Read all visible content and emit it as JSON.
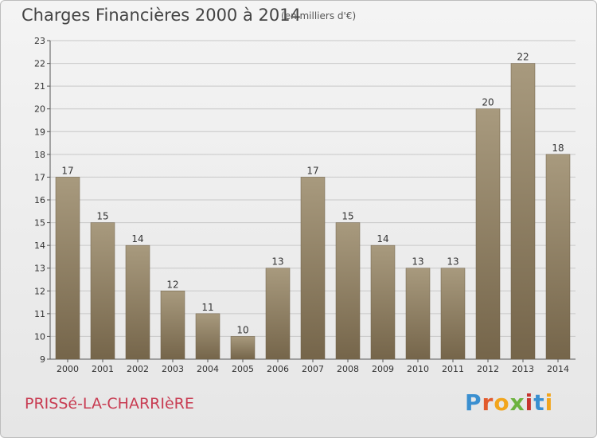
{
  "header": {
    "title": "Charges Financières 2000 à 2014",
    "subtitle": "(en milliers d'€)"
  },
  "footer": {
    "city": "PRISSé-LA-CHARRIèRE",
    "logo": [
      "P",
      "r",
      "o",
      "x",
      "i",
      "t",
      "i"
    ]
  },
  "colors": {
    "bar_light": "#a89a7e",
    "bar_dark": "#75654a",
    "grid": "#c8c8c8",
    "city": "#c83c52"
  },
  "chart_data": {
    "type": "bar",
    "title": "Charges Financières 2000 à 2014",
    "subtitle": "(en milliers d'€)",
    "categories": [
      "2000",
      "2001",
      "2002",
      "2003",
      "2004",
      "2005",
      "2006",
      "2007",
      "2008",
      "2009",
      "2010",
      "2011",
      "2012",
      "2013",
      "2014"
    ],
    "values": [
      17,
      15,
      14,
      12,
      11,
      10,
      13,
      17,
      15,
      14,
      13,
      13,
      20,
      22,
      18
    ],
    "ylim": [
      9,
      23
    ],
    "yticks": [
      9,
      10,
      11,
      12,
      13,
      14,
      15,
      16,
      17,
      18,
      19,
      20,
      21,
      22,
      23
    ],
    "grid": true,
    "legend": "none"
  }
}
